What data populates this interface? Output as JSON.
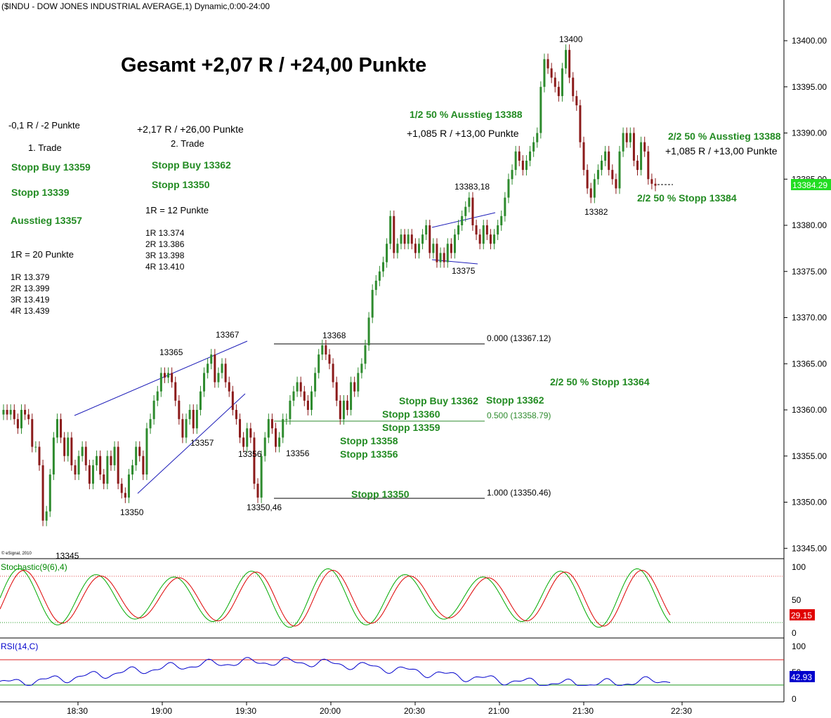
{
  "header": {
    "title": "($INDU - DOW JONES INDUSTRIAL AVERAGE,1) Dynamic,0:00-24:00",
    "copyright": "© eSignal, 2010"
  },
  "colors": {
    "up": "#2e8b2e",
    "down": "#8b1a1a",
    "green_text": "#228B22",
    "blue_line": "#1c1cb8",
    "stoch_k": "#00aa00",
    "stoch_d": "#dd0000",
    "rsi": "#0000cc",
    "last_price_bg": "#22dd22",
    "stoch_badge_bg": "#e00000",
    "rsi_badge_bg": "#0000cc"
  },
  "headline": "Gesamt +2,07 R / +24,00 Punkte",
  "notes": {
    "trade1": {
      "result": "-0,1 R / -2 Punkte",
      "label": "1. Trade",
      "stopp_buy": "Stopp Buy 13359",
      "stopp": "Stopp 13339",
      "exit": "Ausstieg 13357",
      "r_def": "1R = 20 Punkte",
      "targets": [
        "1R 13.379",
        "2R 13.399",
        "3R 13.419",
        "4R 13.439"
      ]
    },
    "trade2": {
      "result": "+2,17 R / +26,00 Punkte",
      "label": "2. Trade",
      "stopp_buy": "Stopp Buy 13362",
      "stopp": "Stopp 13350",
      "r_def": "1R = 12 Punkte",
      "targets": [
        "1R 13.374",
        "2R 13.386",
        "3R 13.398",
        "4R 13.410"
      ]
    },
    "exit1": "1/2 50 % Ausstieg 13388",
    "exit1_result": "+1,085 R / +13,00 Punkte",
    "exit2": "2/2 50 % Ausstieg 13388",
    "exit2_result": "+1,085 R / +13,00 Punkte",
    "stop_2_2_384": "2/2 50 % Stopp 13384",
    "stop_2_2_364": "2/2 50 % Stopp 13364",
    "mid_stopps": [
      "Stopp Buy 13362",
      "Stopp 13362",
      "Stopp 13360",
      "Stopp 13359",
      "Stopp 13358",
      "Stopp 13356",
      "Stopp 13350"
    ]
  },
  "price_labels": [
    "13345",
    "13350",
    "13357",
    "13365",
    "13367",
    "13356",
    "13350,46",
    "13356",
    "13368",
    "13383,18",
    "13375",
    "13400",
    "13382"
  ],
  "fib": [
    "0.000 (13367.12)",
    "0.500 (13358.79)",
    "1.000 (13350.46)"
  ],
  "chart_data": {
    "type": "candlestick",
    "title": "($INDU - DOW JONES INDUSTRIAL AVERAGE,1) Dynamic,0:00-24:00",
    "x": [
      "18:30",
      "19:00",
      "19:30",
      "20:00",
      "20:30",
      "21:00",
      "21:30",
      "22:30"
    ],
    "y_ticks": [
      "13400.00",
      "13395.00",
      "13390.00",
      "13385.00",
      "13380.00",
      "13375.00",
      "13370.00",
      "13365.00",
      "13360.00",
      "13355.00",
      "13350.00",
      "13345.00"
    ],
    "ylim": [
      13344,
      13404
    ],
    "last_price": "13384.29",
    "closes": [
      13360,
      13359.5,
      13360,
      13359,
      13358,
      13360,
      13359.5,
      13359,
      13356,
      13356,
      13354,
      13348,
      13349,
      13353,
      13357,
      13359,
      13357,
      13355,
      13357,
      13354,
      13353,
      13355,
      13356,
      13354,
      13352,
      13354,
      13355,
      13353,
      13352,
      13355,
      13354,
      13356,
      13352,
      13351,
      13350.5,
      13353,
      13354,
      13356,
      13355,
      13353,
      13358,
      13359,
      13361,
      13362,
      13364,
      13363.5,
      13364,
      13363,
      13361,
      13359,
      13357,
      13359,
      13360,
      13358,
      13360,
      13362,
      13364,
      13365,
      13366,
      13363,
      13364,
      13365,
      13363,
      13362,
      13360,
      13359,
      13357,
      13356,
      13358,
      13357,
      13352,
      13350.5,
      13355,
      13357,
      13359,
      13358,
      13356,
      13357,
      13359,
      13359,
      13361,
      13362,
      13363,
      13362,
      13361,
      13360,
      13362,
      13364,
      13366,
      13367,
      13366,
      13365,
      13363,
      13361,
      13359,
      13361,
      13360,
      13363,
      13362,
      13364,
      13365,
      13367,
      13370,
      13373,
      13374,
      13375,
      13376,
      13378,
      13381,
      13377,
      13378,
      13379,
      13378,
      13379,
      13378,
      13377,
      13378,
      13379,
      13380,
      13377,
      13378,
      13376,
      13377,
      13376,
      13378,
      13377,
      13379,
      13380,
      13381,
      13382,
      13383,
      13380,
      13379,
      13378,
      13380,
      13379,
      13378,
      13379,
      13380,
      13381,
      13383,
      13385,
      13386,
      13388,
      13387,
      13386,
      13387,
      13388,
      13389,
      13390,
      13395,
      13398,
      13397,
      13396,
      13395,
      13394,
      13397,
      13399,
      13396,
      13394,
      13393,
      13389,
      13386,
      13384,
      13383,
      13385,
      13386,
      13387,
      13388,
      13386,
      13385,
      13384,
      13388,
      13390,
      13389,
      13390,
      13387,
      13386,
      13389,
      13388,
      13385,
      13384.5,
      13384.29
    ],
    "stochastic": {
      "name": "Stochastic(9(6),4)",
      "levels": [
        "100",
        "50",
        "0"
      ],
      "overbought": 80,
      "oversold": 20,
      "last": "29.15"
    },
    "rsi": {
      "name": "RSI(14,C)",
      "levels": [
        "100",
        "50",
        "0"
      ],
      "overbought": 70,
      "oversold": 30,
      "last": "42.93"
    }
  }
}
